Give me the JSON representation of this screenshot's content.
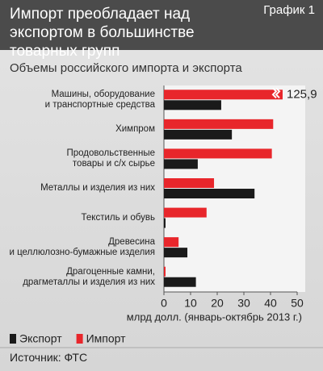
{
  "chart_data": {
    "type": "hbar",
    "badge": "График 1",
    "title": "Импорт преобладает над экспортом в большинстве товарных групп",
    "subtitle": "Объемы российского импорта и экспорта",
    "categories": [
      "Машины, оборудование\nи транспортные средства",
      "Химпром",
      "Продовольственные\nтовары и с/х сырье",
      "Металлы и изделия из них",
      "Текстиль и обувь",
      "Древесина\nи целлюлозно-бумажные изделия",
      "Драгоценные камни,\nдрагметаллы и изделия из них"
    ],
    "series": [
      {
        "name": "Экспорт",
        "color": "#1a1a1a",
        "values": [
          21.5,
          25.5,
          12.7,
          34,
          0.6,
          8.8,
          12
        ]
      },
      {
        "name": "Импорт",
        "color": "#e8262b",
        "values": [
          125.9,
          41,
          40.5,
          18.8,
          16,
          5.5,
          0.6
        ],
        "value_labels": [
          "125,9",
          null,
          null,
          null,
          null,
          null,
          null
        ]
      }
    ],
    "xlim": [
      0,
      50
    ],
    "xticks": [
      0,
      10,
      20,
      30,
      40,
      50
    ],
    "xlabel": "млрд долл. (январь-октябрь 2013 г.)",
    "source": "Источник: ФТС"
  }
}
